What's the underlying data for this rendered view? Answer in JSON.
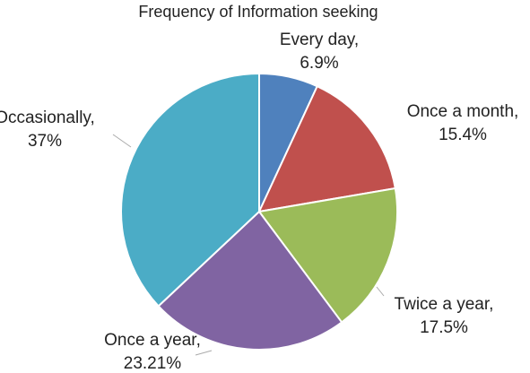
{
  "chart_data": {
    "type": "pie",
    "title": "Frequency of Information seeking",
    "categories": [
      "Every day,",
      "Once a month,",
      "Twice a year,",
      "Once a year,",
      "Occasionally,"
    ],
    "values": [
      6.9,
      15.4,
      17.5,
      23.21,
      37
    ],
    "value_labels": [
      "6.9%",
      "15.4%",
      "17.5%",
      "23.21%",
      "37%"
    ],
    "colors": [
      "#4f81bd",
      "#c0504d",
      "#9bbb59",
      "#8064a2",
      "#4bacc6"
    ]
  }
}
